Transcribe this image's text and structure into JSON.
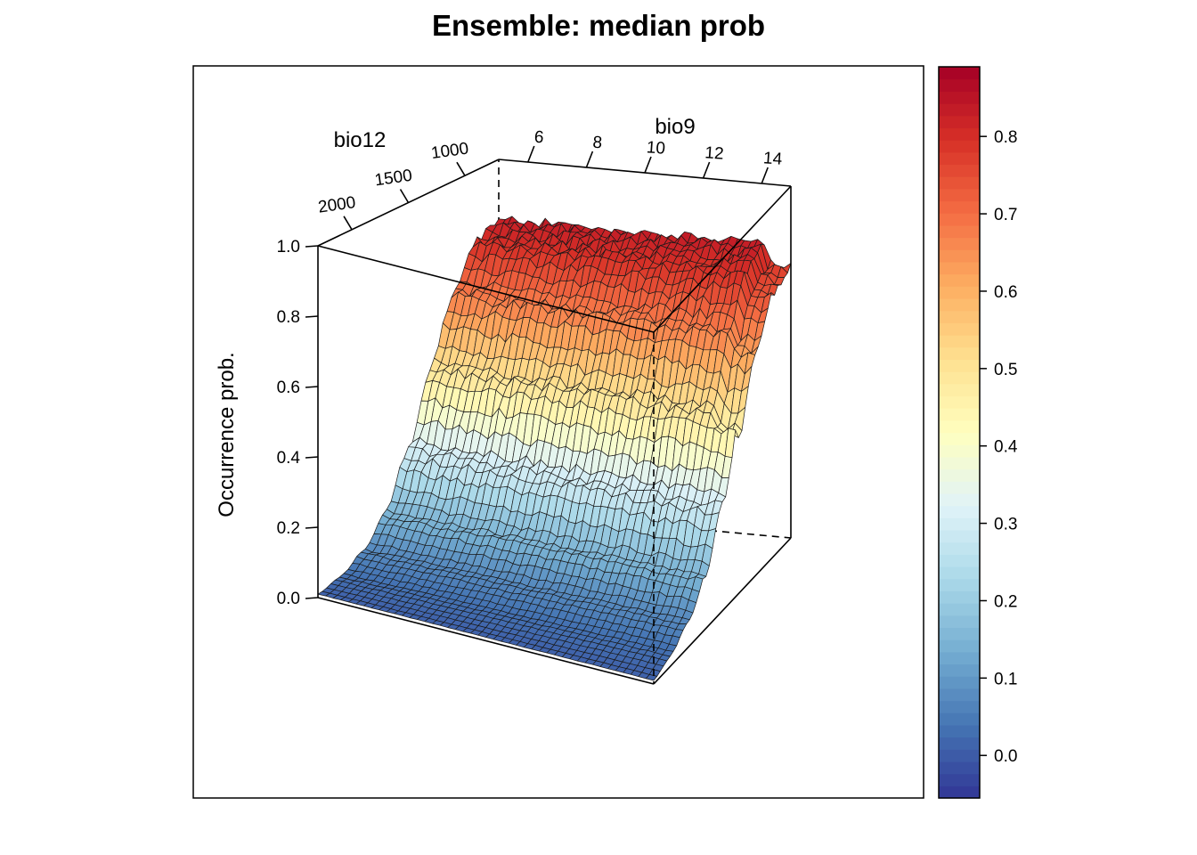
{
  "title": "Ensemble: median prob",
  "colors": {
    "palette": [
      "#313695",
      "#4575b4",
      "#74add1",
      "#abd9e9",
      "#e0f3f8",
      "#ffffbf",
      "#fee090",
      "#fdae61",
      "#f46d43",
      "#d73027",
      "#a50026"
    ],
    "frame": "#000000",
    "background": "#ffffff"
  },
  "chart_data": {
    "type": "surface3d",
    "title": "Ensemble: median prob",
    "x_axis": {
      "label": "bio9",
      "ticks": [
        "6",
        "8",
        "10",
        "12",
        "14"
      ],
      "tick_values": [
        6,
        8,
        10,
        12,
        14
      ],
      "range": [
        5,
        15
      ]
    },
    "y_axis": {
      "label": "bio12",
      "ticks": [
        "1000",
        "1500",
        "2000"
      ],
      "tick_values": [
        1000,
        1500,
        2000
      ],
      "range": [
        700,
        2300
      ]
    },
    "z_axis": {
      "label": "Occurrence prob.",
      "ticks": [
        "0.0",
        "0.2",
        "0.4",
        "0.6",
        "0.8",
        "1.0"
      ],
      "tick_values": [
        0,
        0.2,
        0.4,
        0.6,
        0.8,
        1.0
      ],
      "range": [
        0,
        1
      ]
    },
    "surface_profile": {
      "description_axis": "bio12",
      "bio12": [
        2300,
        2100,
        1900,
        1700,
        1500,
        1300,
        1100,
        900,
        700
      ],
      "occurrence_prob": [
        0.01,
        0.03,
        0.07,
        0.15,
        0.3,
        0.5,
        0.68,
        0.8,
        0.83
      ]
    },
    "colorbar": {
      "ticks": [
        "0.0",
        "0.1",
        "0.2",
        "0.3",
        "0.4",
        "0.5",
        "0.6",
        "0.7",
        "0.8"
      ],
      "tick_values": [
        0,
        0.1,
        0.2,
        0.3,
        0.4,
        0.5,
        0.6,
        0.7,
        0.8
      ],
      "range": [
        -0.055,
        0.89
      ]
    },
    "grid": false,
    "legend": "colorbar-right"
  }
}
